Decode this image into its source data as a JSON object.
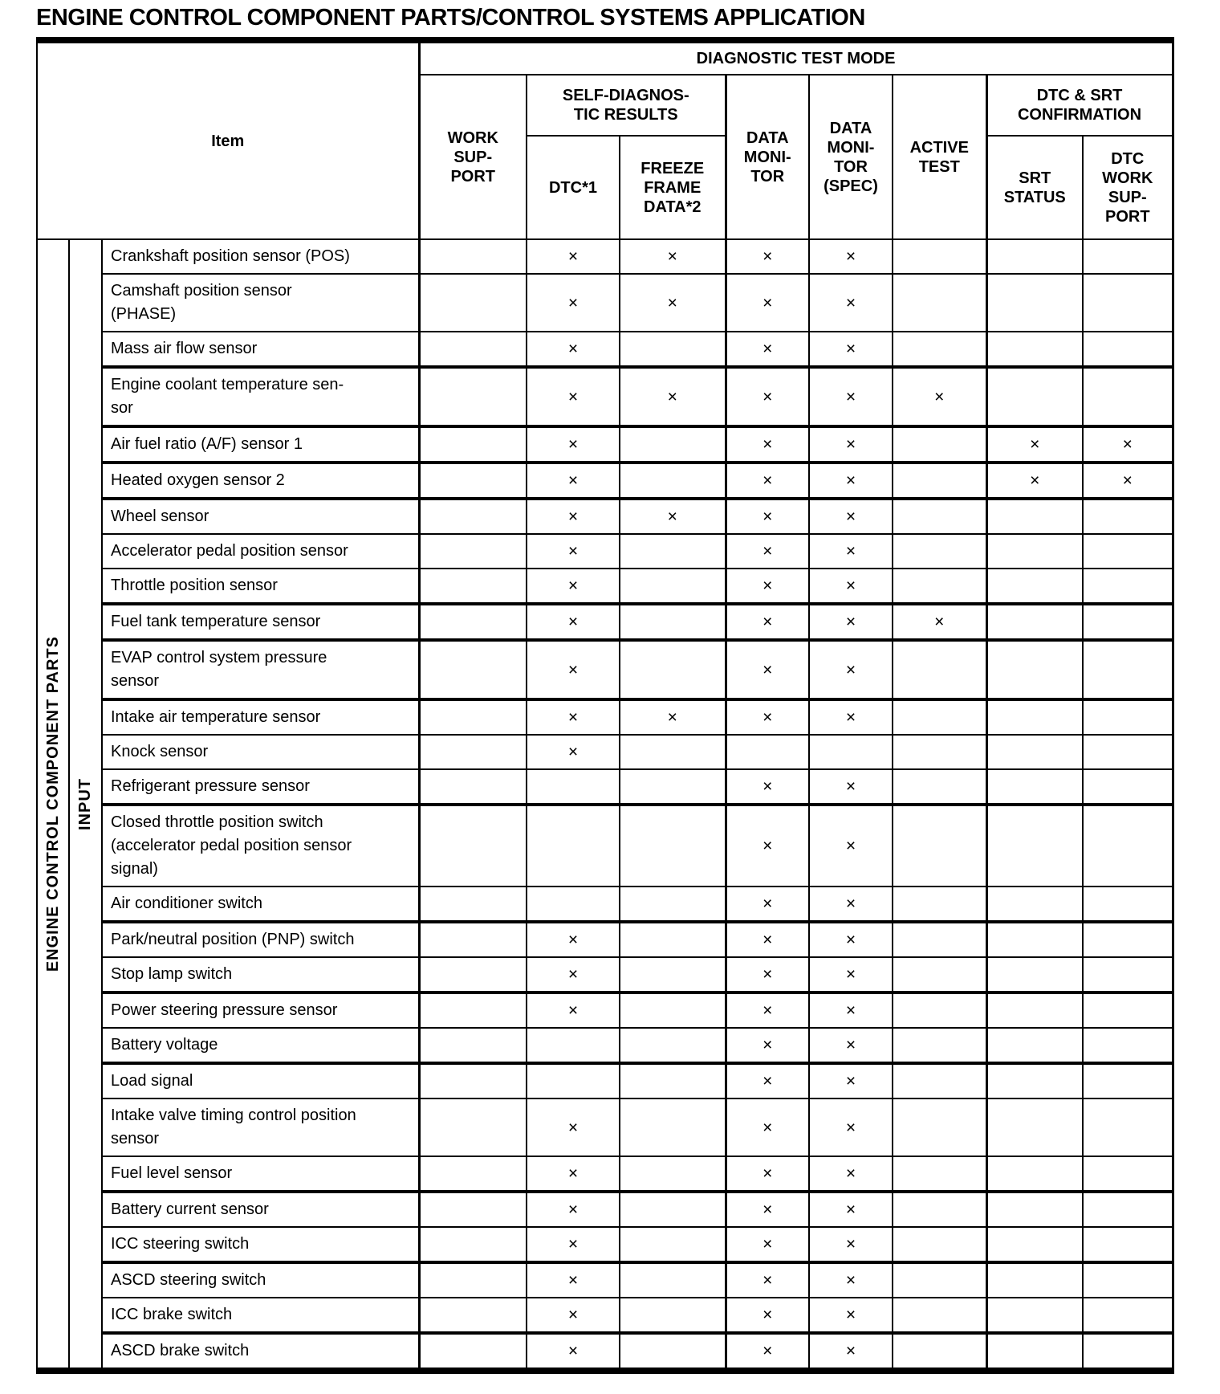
{
  "title": "ENGINE CONTROL COMPONENT PARTS/CONTROL SYSTEMS APPLICATION",
  "table": {
    "item_header": "Item",
    "diagnostic_header": "DIAGNOSTIC TEST MODE",
    "col_headers": {
      "work_support": "WORK\nSUP-\nPORT",
      "self_diagnostic_results": "SELF-DIAGNOS-\nTIC RESULTS",
      "dtc": "DTC*1",
      "freeze_frame_data": "FREEZE\nFRAME\nDATA*2",
      "data_monitor": "DATA\nMONI-\nTOR",
      "data_monitor_spec": "DATA\nMONI-\nTOR\n(SPEC)",
      "active_test": "ACTIVE\nTEST",
      "dtc_srt_confirmation": "DTC & SRT\nCONFIRMATION",
      "srt_status": "SRT\nSTATUS",
      "dtc_work_support": "DTC\nWORK\nSUP-\nPORT"
    },
    "side_labels": {
      "group": "ENGINE CONTROL COMPONENT PARTS",
      "subgroup": "INPUT"
    },
    "mark_symbol": "×",
    "mark_columns": [
      "work-support",
      "dtc",
      "freeze-frame-data",
      "data-monitor",
      "data-monitor-spec",
      "active-test",
      "srt-status",
      "dtc-work-support"
    ],
    "heavy_rule_after_rows": [
      2,
      3,
      4,
      5,
      8,
      9,
      10,
      13,
      15,
      17,
      19,
      22,
      24,
      26
    ],
    "rows": [
      {
        "lines": [
          "Crankshaft position sensor (POS)"
        ],
        "marks": [
          "",
          "×",
          "×",
          "×",
          "×",
          "",
          "",
          ""
        ]
      },
      {
        "lines": [
          "Camshaft position sensor",
          "(PHASE)"
        ],
        "marks": [
          "",
          "×",
          "×",
          "×",
          "×",
          "",
          "",
          ""
        ]
      },
      {
        "lines": [
          "Mass air flow sensor"
        ],
        "marks": [
          "",
          "×",
          "",
          "×",
          "×",
          "",
          "",
          ""
        ]
      },
      {
        "lines": [
          "Engine coolant temperature sen-",
          "sor"
        ],
        "marks": [
          "",
          "×",
          "×",
          "×",
          "×",
          "×",
          "",
          ""
        ]
      },
      {
        "lines": [
          "Air fuel ratio (A/F) sensor 1"
        ],
        "marks": [
          "",
          "×",
          "",
          "×",
          "×",
          "",
          "×",
          "×"
        ]
      },
      {
        "lines": [
          "Heated oxygen sensor 2"
        ],
        "marks": [
          "",
          "×",
          "",
          "×",
          "×",
          "",
          "×",
          "×"
        ]
      },
      {
        "lines": [
          "Wheel sensor"
        ],
        "marks": [
          "",
          "×",
          "×",
          "×",
          "×",
          "",
          "",
          ""
        ]
      },
      {
        "lines": [
          "Accelerator pedal position sensor"
        ],
        "marks": [
          "",
          "×",
          "",
          "×",
          "×",
          "",
          "",
          ""
        ]
      },
      {
        "lines": [
          "Throttle position sensor"
        ],
        "marks": [
          "",
          "×",
          "",
          "×",
          "×",
          "",
          "",
          ""
        ]
      },
      {
        "lines": [
          "Fuel tank temperature sensor"
        ],
        "marks": [
          "",
          "×",
          "",
          "×",
          "×",
          "×",
          "",
          ""
        ]
      },
      {
        "lines": [
          "EVAP control system pressure",
          "sensor"
        ],
        "marks": [
          "",
          "×",
          "",
          "×",
          "×",
          "",
          "",
          ""
        ]
      },
      {
        "lines": [
          "Intake air temperature sensor"
        ],
        "marks": [
          "",
          "×",
          "×",
          "×",
          "×",
          "",
          "",
          ""
        ]
      },
      {
        "lines": [
          "Knock sensor"
        ],
        "marks": [
          "",
          "×",
          "",
          "",
          "",
          "",
          "",
          ""
        ]
      },
      {
        "lines": [
          "Refrigerant pressure sensor"
        ],
        "marks": [
          "",
          "",
          "",
          "×",
          "×",
          "",
          "",
          ""
        ]
      },
      {
        "lines": [
          "Closed throttle position switch",
          "(accelerator pedal position sensor",
          "signal)"
        ],
        "marks": [
          "",
          "",
          "",
          "×",
          "×",
          "",
          "",
          ""
        ]
      },
      {
        "lines": [
          "Air conditioner switch"
        ],
        "marks": [
          "",
          "",
          "",
          "×",
          "×",
          "",
          "",
          ""
        ]
      },
      {
        "lines": [
          "Park/neutral position (PNP) switch"
        ],
        "marks": [
          "",
          "×",
          "",
          "×",
          "×",
          "",
          "",
          ""
        ]
      },
      {
        "lines": [
          "Stop lamp switch"
        ],
        "marks": [
          "",
          "×",
          "",
          "×",
          "×",
          "",
          "",
          ""
        ]
      },
      {
        "lines": [
          "Power steering pressure sensor"
        ],
        "marks": [
          "",
          "×",
          "",
          "×",
          "×",
          "",
          "",
          ""
        ]
      },
      {
        "lines": [
          "Battery voltage"
        ],
        "marks": [
          "",
          "",
          "",
          "×",
          "×",
          "",
          "",
          ""
        ]
      },
      {
        "lines": [
          "Load signal"
        ],
        "marks": [
          "",
          "",
          "",
          "×",
          "×",
          "",
          "",
          ""
        ]
      },
      {
        "lines": [
          "Intake valve timing control position",
          "sensor"
        ],
        "marks": [
          "",
          "×",
          "",
          "×",
          "×",
          "",
          "",
          ""
        ]
      },
      {
        "lines": [
          "Fuel level sensor"
        ],
        "marks": [
          "",
          "×",
          "",
          "×",
          "×",
          "",
          "",
          ""
        ]
      },
      {
        "lines": [
          "Battery current sensor"
        ],
        "marks": [
          "",
          "×",
          "",
          "×",
          "×",
          "",
          "",
          ""
        ]
      },
      {
        "lines": [
          "ICC steering switch"
        ],
        "marks": [
          "",
          "×",
          "",
          "×",
          "×",
          "",
          "",
          ""
        ]
      },
      {
        "lines": [
          "ASCD steering switch"
        ],
        "marks": [
          "",
          "×",
          "",
          "×",
          "×",
          "",
          "",
          ""
        ]
      },
      {
        "lines": [
          "ICC brake switch"
        ],
        "marks": [
          "",
          "×",
          "",
          "×",
          "×",
          "",
          "",
          ""
        ]
      },
      {
        "lines": [
          "ASCD brake switch"
        ],
        "marks": [
          "",
          "×",
          "",
          "×",
          "×",
          "",
          "",
          ""
        ]
      }
    ]
  }
}
